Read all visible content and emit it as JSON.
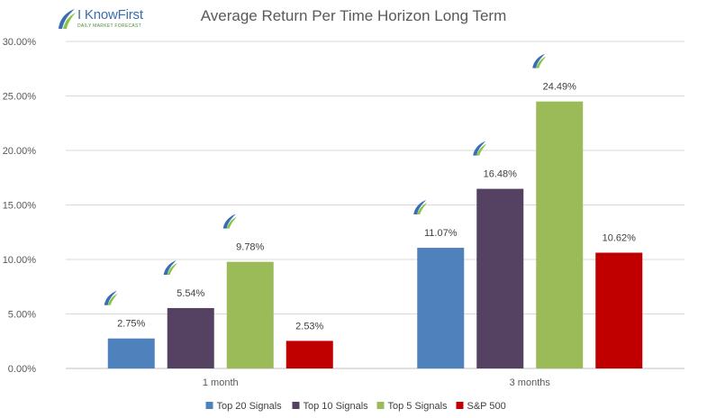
{
  "brand": {
    "name": "I KnowFirst",
    "tagline": "DAILY MARKET FORECAST"
  },
  "chart_data": {
    "type": "bar",
    "title": "Average Return Per Time Horizon Long Term",
    "categories": [
      "1 month",
      "3 months"
    ],
    "series": [
      {
        "name": "Top 20 Signals",
        "color": "#4f81bd",
        "values": [
          2.75,
          11.07
        ],
        "labels": [
          "2.75%",
          "11.07%"
        ]
      },
      {
        "name": "Top 10 Signals",
        "color": "#554263",
        "values": [
          5.54,
          16.48
        ],
        "labels": [
          "5.54%",
          "16.48%"
        ]
      },
      {
        "name": "Top 5 Signals",
        "color": "#9bbb59",
        "values": [
          9.78,
          24.49
        ],
        "labels": [
          "9.78%",
          "24.49%"
        ]
      },
      {
        "name": "S&P 500",
        "color": "#c00000",
        "values": [
          2.53,
          10.62
        ],
        "labels": [
          "2.53%",
          "10.62%"
        ]
      }
    ],
    "ylim": [
      0,
      30
    ],
    "yticks": [
      0,
      5,
      10,
      15,
      20,
      25,
      30
    ],
    "ytick_labels": [
      "0.00%",
      "5.00%",
      "10.00%",
      "15.00%",
      "20.00%",
      "25.00%",
      "30.00%"
    ],
    "grid": true,
    "legend": "bottom",
    "marker_icon": "knowfirst-logo-icon",
    "marker_series": [
      "Top 20 Signals",
      "Top 10 Signals",
      "Top 5 Signals"
    ]
  }
}
